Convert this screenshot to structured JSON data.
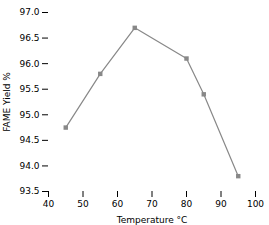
{
  "chart_data": {
    "type": "line",
    "x": [
      45,
      55,
      65,
      80,
      85,
      95
    ],
    "values": [
      94.75,
      95.8,
      96.7,
      96.1,
      95.4,
      93.8
    ],
    "color": "#888888",
    "marker": "square",
    "xlabel": "Temperature °C",
    "ylabel": "FAME Yield %",
    "xlim": [
      40,
      100
    ],
    "ylim": [
      93.5,
      97.0
    ],
    "xticks": [
      40,
      50,
      60,
      70,
      80,
      90,
      100
    ],
    "yticks": [
      93.5,
      {
        "value": 94,
        "label": "94.0"
      },
      94.5,
      {
        "value": 95,
        "label": "95.0"
      },
      95.5,
      {
        "value": 96,
        "label": "96.0"
      },
      96.5,
      {
        "value": 97,
        "label": "97.0"
      }
    ]
  }
}
